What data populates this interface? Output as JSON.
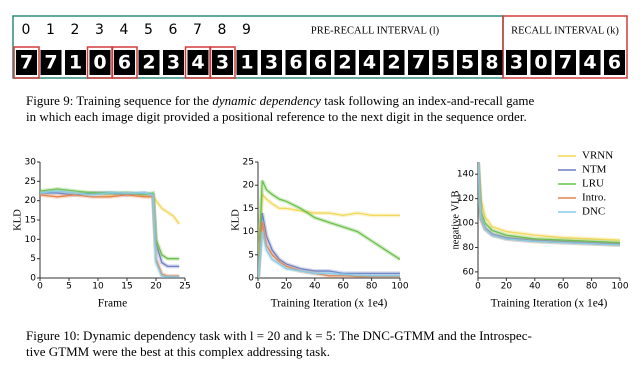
{
  "figure9": {
    "indices": [
      "0",
      "1",
      "2",
      "3",
      "4",
      "5",
      "6",
      "7",
      "8",
      "9"
    ],
    "pre_recall_header": "PRE-RECALL INTERVAL (l)",
    "recall_header": "RECALL INTERVAL (k)",
    "digits": [
      "7",
      "7",
      "1",
      "0",
      "6",
      "2",
      "3",
      "4",
      "3",
      "1",
      "3",
      "6",
      "6",
      "2",
      "4",
      "2",
      "7",
      "5",
      "5",
      "8",
      "3",
      "0",
      "7",
      "4",
      "6"
    ],
    "caption": [
      "Figure 9: Training sequence for the ",
      "dynamic dependency",
      " task following an index-and-recall game",
      "in which each image digit provided a positional reference to the next digit in the sequence order."
    ]
  },
  "chart_data": [
    {
      "type": "line",
      "xlabel": "Frame",
      "ylabel": "KLD",
      "x": [
        0,
        3,
        6,
        9,
        12,
        15,
        18,
        19.5,
        20,
        21,
        22,
        23,
        24
      ],
      "xlim": [
        0,
        25
      ],
      "xticks": [
        0,
        5,
        10,
        15,
        20,
        25
      ],
      "ylim": [
        0,
        30
      ],
      "yticks": [
        0,
        5,
        10,
        15,
        20,
        25,
        30
      ],
      "series": [
        {
          "color": "#f2d75a",
          "values": [
            22,
            22.5,
            22,
            22,
            21.5,
            22,
            21.5,
            21.5,
            20,
            18,
            17,
            16,
            14
          ]
        },
        {
          "color": "#6d7fc4",
          "values": [
            22,
            22,
            21.5,
            22,
            22,
            21.5,
            22,
            21.5,
            9,
            4,
            3,
            3,
            3
          ]
        },
        {
          "color": "#6cc04a",
          "values": [
            22.5,
            23,
            22.5,
            22,
            22,
            22,
            21.5,
            22,
            10,
            6,
            5,
            5,
            5
          ]
        },
        {
          "color": "#e5834a",
          "values": [
            21.5,
            21,
            21.5,
            21,
            21,
            21.5,
            21,
            21,
            5,
            1,
            0.5,
            0.5,
            0.5
          ]
        },
        {
          "color": "#86cbe8",
          "values": [
            22,
            22.5,
            22,
            21.5,
            22,
            22,
            22,
            21.5,
            4,
            0.5,
            0.3,
            0.3,
            0.3
          ]
        }
      ]
    },
    {
      "type": "line",
      "xlabel": "Training Iteration (x 1e4)",
      "ylabel": "KLD",
      "x": [
        0,
        3,
        6,
        10,
        15,
        20,
        30,
        40,
        50,
        60,
        70,
        80,
        90,
        100
      ],
      "xlim": [
        0,
        100
      ],
      "xticks": [
        0,
        20,
        40,
        60,
        80,
        100
      ],
      "ylim": [
        0,
        25
      ],
      "yticks": [
        0,
        5,
        10,
        15,
        20,
        25
      ],
      "series": [
        {
          "color": "#f2d75a",
          "values": [
            5,
            18,
            17,
            16,
            15,
            15,
            14.5,
            14,
            14,
            13.5,
            14,
            13.5,
            13.5,
            13.5
          ]
        },
        {
          "color": "#6d7fc4",
          "values": [
            0,
            14,
            9,
            6,
            4,
            3,
            2,
            1.5,
            1.5,
            1,
            1,
            1,
            1,
            1
          ]
        },
        {
          "color": "#6cc04a",
          "values": [
            0,
            21,
            19,
            18,
            17,
            16.5,
            15,
            13,
            12,
            11,
            10,
            8,
            6,
            4
          ]
        },
        {
          "color": "#e5834a",
          "values": [
            0,
            12,
            7,
            5,
            3.5,
            2.5,
            1.5,
            1,
            0.5,
            0.5,
            0.3,
            0.3,
            0.3,
            0.3
          ]
        },
        {
          "color": "#86cbe8",
          "values": [
            0,
            10,
            6,
            4,
            3,
            2,
            1.5,
            1,
            1,
            0.8,
            0.6,
            0.5,
            0.5,
            0.5
          ]
        }
      ]
    },
    {
      "type": "line",
      "xlabel": "Training Iteration (x 1e4)",
      "ylabel": "negative VLB",
      "x": [
        0,
        2,
        5,
        10,
        20,
        40,
        60,
        80,
        100
      ],
      "xlim": [
        0,
        100
      ],
      "xticks": [
        0,
        20,
        40,
        60,
        80,
        100
      ],
      "ylim": [
        55,
        150
      ],
      "yticks": [
        60,
        80,
        100,
        120,
        140
      ],
      "legend": "upper right",
      "series": [
        {
          "name": "VRNN",
          "color": "#f2d75a",
          "values": [
            150,
            120,
            105,
            97,
            93,
            90,
            88,
            87,
            86
          ]
        },
        {
          "name": "NTM",
          "color": "#6d7fc4",
          "values": [
            150,
            105,
            96,
            91,
            88,
            86,
            85,
            84,
            83
          ]
        },
        {
          "name": "LRU",
          "color": "#6cc04a",
          "values": [
            150,
            110,
            100,
            94,
            90,
            87,
            86,
            85,
            84
          ]
        },
        {
          "name": "Intro.",
          "color": "#e5834a",
          "values": [
            150,
            103,
            95,
            90,
            87,
            85,
            84,
            83,
            82
          ]
        },
        {
          "name": "DNC",
          "color": "#86cbe8",
          "values": [
            150,
            104,
            95,
            90,
            87,
            85,
            84,
            83,
            82
          ]
        }
      ]
    }
  ],
  "figure10": {
    "caption": [
      "Figure 10: Dynamic dependency task with l = 20 and k = 5: The DNC-GTMM and the Introspec-",
      "tive GTMM were the best at this complex addressing task."
    ]
  }
}
